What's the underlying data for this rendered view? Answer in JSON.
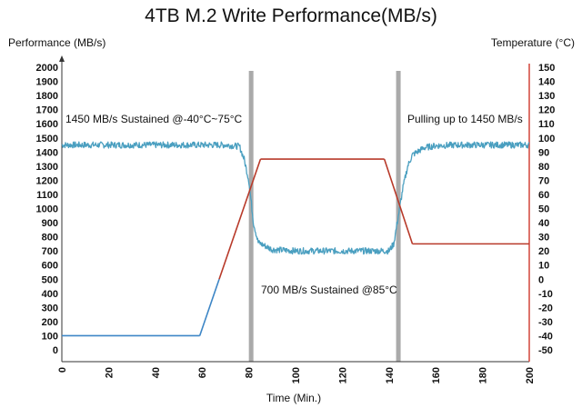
{
  "chart_data": {
    "type": "line",
    "title": "4TB M.2 Write Performance(MB/s)",
    "xlabel": "Time (Min.)",
    "ylabel_left": "Performance (MB/s)",
    "ylabel_right": "Temperature (°C)",
    "xlim": [
      0,
      200
    ],
    "ylim_left": [
      0,
      2000
    ],
    "ylim_right": [
      -50,
      150
    ],
    "x_ticks": [
      0,
      20,
      40,
      60,
      80,
      100,
      120,
      140,
      160,
      180,
      200
    ],
    "y_left_ticks": [
      0,
      100,
      200,
      300,
      400,
      500,
      600,
      700,
      800,
      900,
      1000,
      1100,
      1200,
      1300,
      1400,
      1500,
      1600,
      1700,
      1800,
      1900,
      2000
    ],
    "y_right_ticks": [
      -50,
      -40,
      -30,
      -20,
      -10,
      0,
      10,
      20,
      30,
      40,
      50,
      60,
      70,
      80,
      90,
      100,
      110,
      120,
      130,
      140,
      150
    ],
    "vertical_markers": [
      81,
      144
    ],
    "series": [
      {
        "axis": "left",
        "color": "#4a9fc0",
        "x": [
          0,
          10,
          20,
          30,
          40,
          50,
          60,
          70,
          76,
          78,
          80,
          81,
          82,
          84,
          90,
          100,
          110,
          120,
          130,
          140,
          142,
          144,
          146,
          148,
          150,
          155,
          160,
          170,
          180,
          190,
          200
        ],
        "y": [
          1450,
          1450,
          1450,
          1450,
          1450,
          1450,
          1450,
          1450,
          1440,
          1350,
          1200,
          1050,
          900,
          760,
          710,
          700,
          700,
          700,
          700,
          700,
          750,
          950,
          1150,
          1300,
          1380,
          1430,
          1445,
          1450,
          1450,
          1450,
          1450
        ]
      },
      {
        "axis": "right",
        "color_cold": "#3d86c6",
        "color_hot": "#b83a2a",
        "x": [
          0,
          59,
          85,
          138,
          150,
          200
        ],
        "y": [
          -40,
          -40,
          85,
          85,
          25,
          25
        ]
      }
    ],
    "annotations": {
      "cold": "1450 MB/s Sustained @-40°C~75°C",
      "hot": "700 MB/s Sustained @85°C",
      "recover": "Pulling up to 1450 MB/s"
    },
    "grid": false
  }
}
